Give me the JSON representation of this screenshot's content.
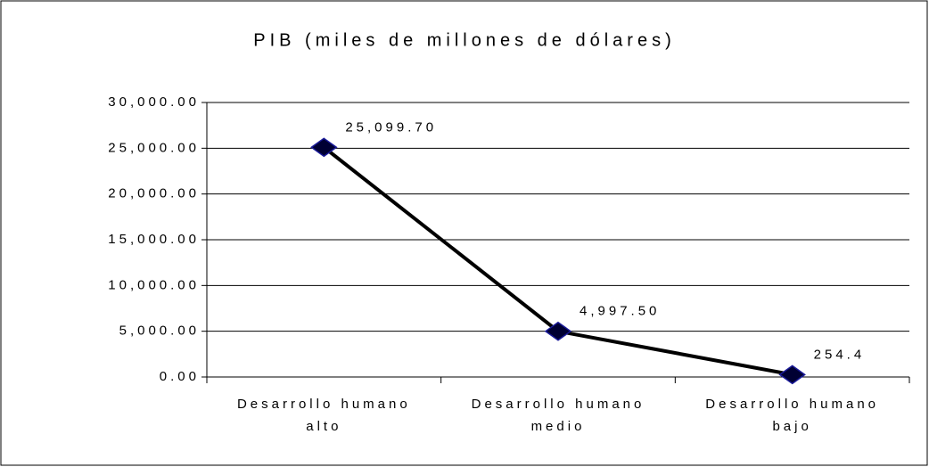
{
  "chart_data": {
    "type": "line",
    "title": "PIB (miles de millones de dólares)",
    "categories": [
      "Desarrollo humano alto",
      "Desarrollo humano medio",
      "Desarrollo humano bajo"
    ],
    "values": [
      25099.7,
      4997.5,
      254.4
    ],
    "value_labels": [
      "25,099.70",
      "4,997.50",
      "254.4"
    ],
    "color": "#000000",
    "marker_color": "#000033",
    "ylim": [
      0,
      30000
    ],
    "yticks": [
      {
        "value": 0,
        "label": "0.00"
      },
      {
        "value": 5000,
        "label": "5,000.00"
      },
      {
        "value": 10000,
        "label": "10,000.00"
      },
      {
        "value": 15000,
        "label": "15,000.00"
      },
      {
        "value": 20000,
        "label": "20,000.00"
      },
      {
        "value": 25000,
        "label": "25,000.00"
      },
      {
        "value": 30000,
        "label": "30,000.00"
      }
    ],
    "grid": true
  }
}
